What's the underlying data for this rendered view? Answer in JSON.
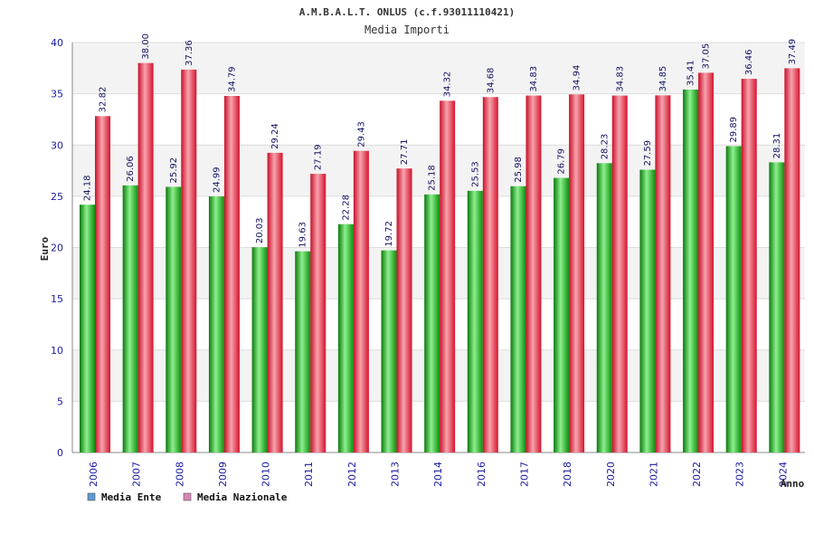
{
  "chart_data": {
    "type": "bar",
    "title": "A.M.B.A.L.T. ONLUS (c.f.93011110421)",
    "subtitle": "Media Importi",
    "xlabel": "Anno",
    "ylabel": "Euro",
    "ylim": [
      0,
      40
    ],
    "yticks": [
      0,
      5,
      10,
      15,
      20,
      25,
      30,
      35,
      40
    ],
    "grid": true,
    "legend_position": "bottom-left",
    "categories": [
      "2006",
      "2007",
      "2008",
      "2009",
      "2010",
      "2011",
      "2012",
      "2013",
      "2014",
      "2016",
      "2017",
      "2018",
      "2020",
      "2021",
      "2022",
      "2023",
      "2024"
    ],
    "series": [
      {
        "name": "Media Ente",
        "color": "#1fb81f",
        "legend_color": "#5b9bd5",
        "values": [
          24.18,
          26.06,
          25.92,
          24.99,
          20.03,
          19.63,
          22.28,
          19.72,
          25.18,
          25.53,
          25.98,
          26.79,
          28.23,
          27.59,
          35.41,
          29.89,
          28.31
        ],
        "labels": [
          "24.18",
          "26.06",
          "25.92",
          "24.99",
          "20.03",
          "19.63",
          "22.28",
          "19.72",
          "25.18",
          "25.53",
          "25.98",
          "26.79",
          "28.23",
          "27.59",
          "35.41",
          "29.89",
          "28.31"
        ]
      },
      {
        "name": "Media Nazionale",
        "color": "#e8213a",
        "legend_color": "#d985b8",
        "values": [
          32.82,
          38.0,
          37.36,
          34.79,
          29.24,
          27.19,
          29.43,
          27.71,
          34.32,
          34.68,
          34.83,
          34.94,
          34.83,
          34.85,
          37.05,
          36.46,
          37.49
        ],
        "labels": [
          "32.82",
          "38.00",
          "37.36",
          "34.79",
          "29.24",
          "27.19",
          "29.43",
          "27.71",
          "34.32",
          "34.68",
          "34.83",
          "34.94",
          "34.83",
          "34.85",
          "37.05",
          "36.46",
          "37.49"
        ]
      }
    ]
  }
}
